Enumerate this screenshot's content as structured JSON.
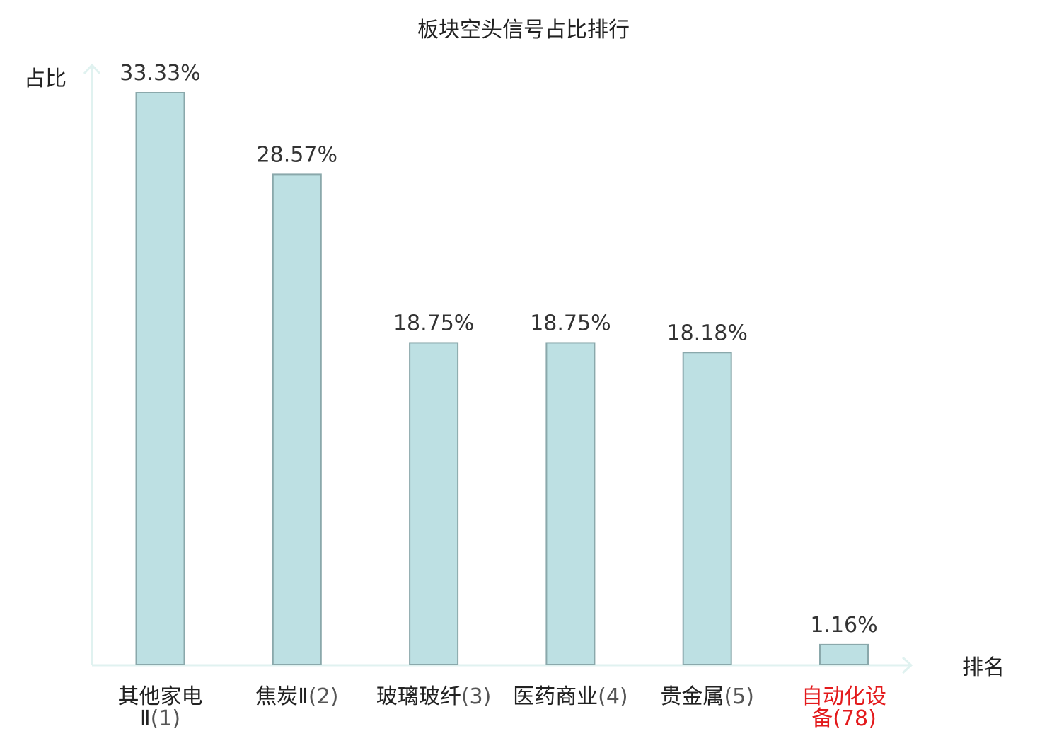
{
  "chart_data": {
    "type": "bar",
    "title": "板块空头信号占比排行",
    "ylabel": "占比",
    "xlabel": "排名",
    "ylim": [
      0,
      35
    ],
    "grid": false,
    "categories": [
      {
        "name": "其他家电Ⅱ",
        "rank": "(1)"
      },
      {
        "name": "焦炭Ⅱ",
        "rank": "(2)"
      },
      {
        "name": "玻璃玻纤",
        "rank": "(3)"
      },
      {
        "name": "医药商业",
        "rank": "(4)"
      },
      {
        "name": "贵金属",
        "rank": "(5)"
      },
      {
        "name": "自动化设备",
        "rank": "(78)"
      }
    ],
    "values": [
      33.33,
      28.57,
      18.75,
      18.75,
      18.18,
      1.16
    ],
    "value_labels": [
      "33.33%",
      "28.57%",
      "18.75%",
      "18.75%",
      "18.18%",
      "1.16%"
    ],
    "highlight_index": 5,
    "colors": {
      "bar_fill": "#bde0e3",
      "bar_stroke": "#8aa8ab",
      "axis": "#e0f2f0",
      "highlight": "#e31a1c"
    }
  }
}
